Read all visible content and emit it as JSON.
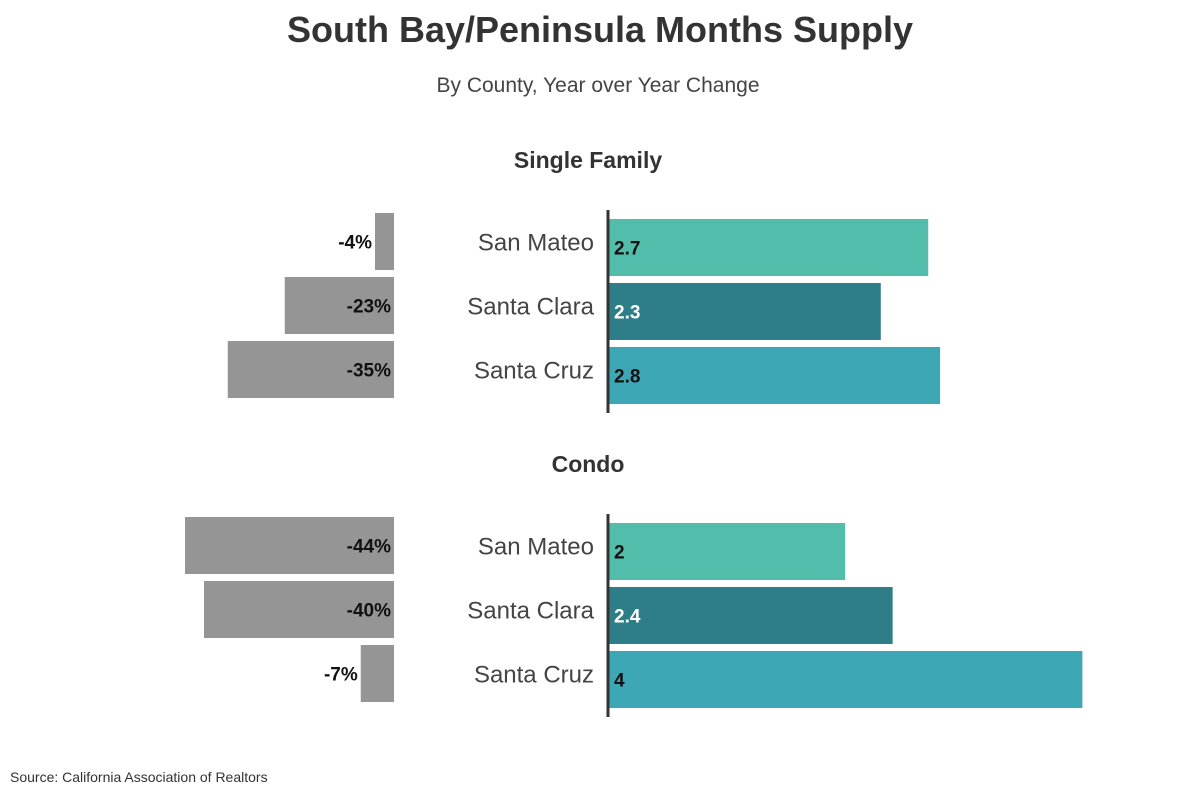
{
  "chart_data": {
    "type": "bar",
    "title": "South Bay/Peninsula Months Supply",
    "subtitle": "By County, Year over Year Change",
    "source": "Source:  California Association of Realtors",
    "categories": [
      "San Mateo",
      "Santa Clara",
      "Santa Cruz"
    ],
    "colors": {
      "San Mateo": "#52bdab",
      "Santa Clara": "#2e7e89",
      "Santa Cruz": "#3ea7b5",
      "change": "#959595",
      "axis": "#333333"
    },
    "groups": [
      {
        "name": "Single Family",
        "months_supply": [
          2.7,
          2.3,
          2.8
        ],
        "months_supply_labels": [
          "2.7",
          "2.3",
          "2.8"
        ],
        "yoy_change_pct": [
          -4,
          -23,
          -35
        ],
        "yoy_change_labels": [
          "-4%",
          "-23%",
          "-35%"
        ]
      },
      {
        "name": "Condo",
        "months_supply": [
          2,
          2.4,
          4
        ],
        "months_supply_labels": [
          "2",
          "2.4",
          "4"
        ],
        "yoy_change_pct": [
          -44,
          -40,
          -7
        ],
        "yoy_change_labels": [
          "-44%",
          "-40%",
          "-7%"
        ]
      }
    ]
  }
}
